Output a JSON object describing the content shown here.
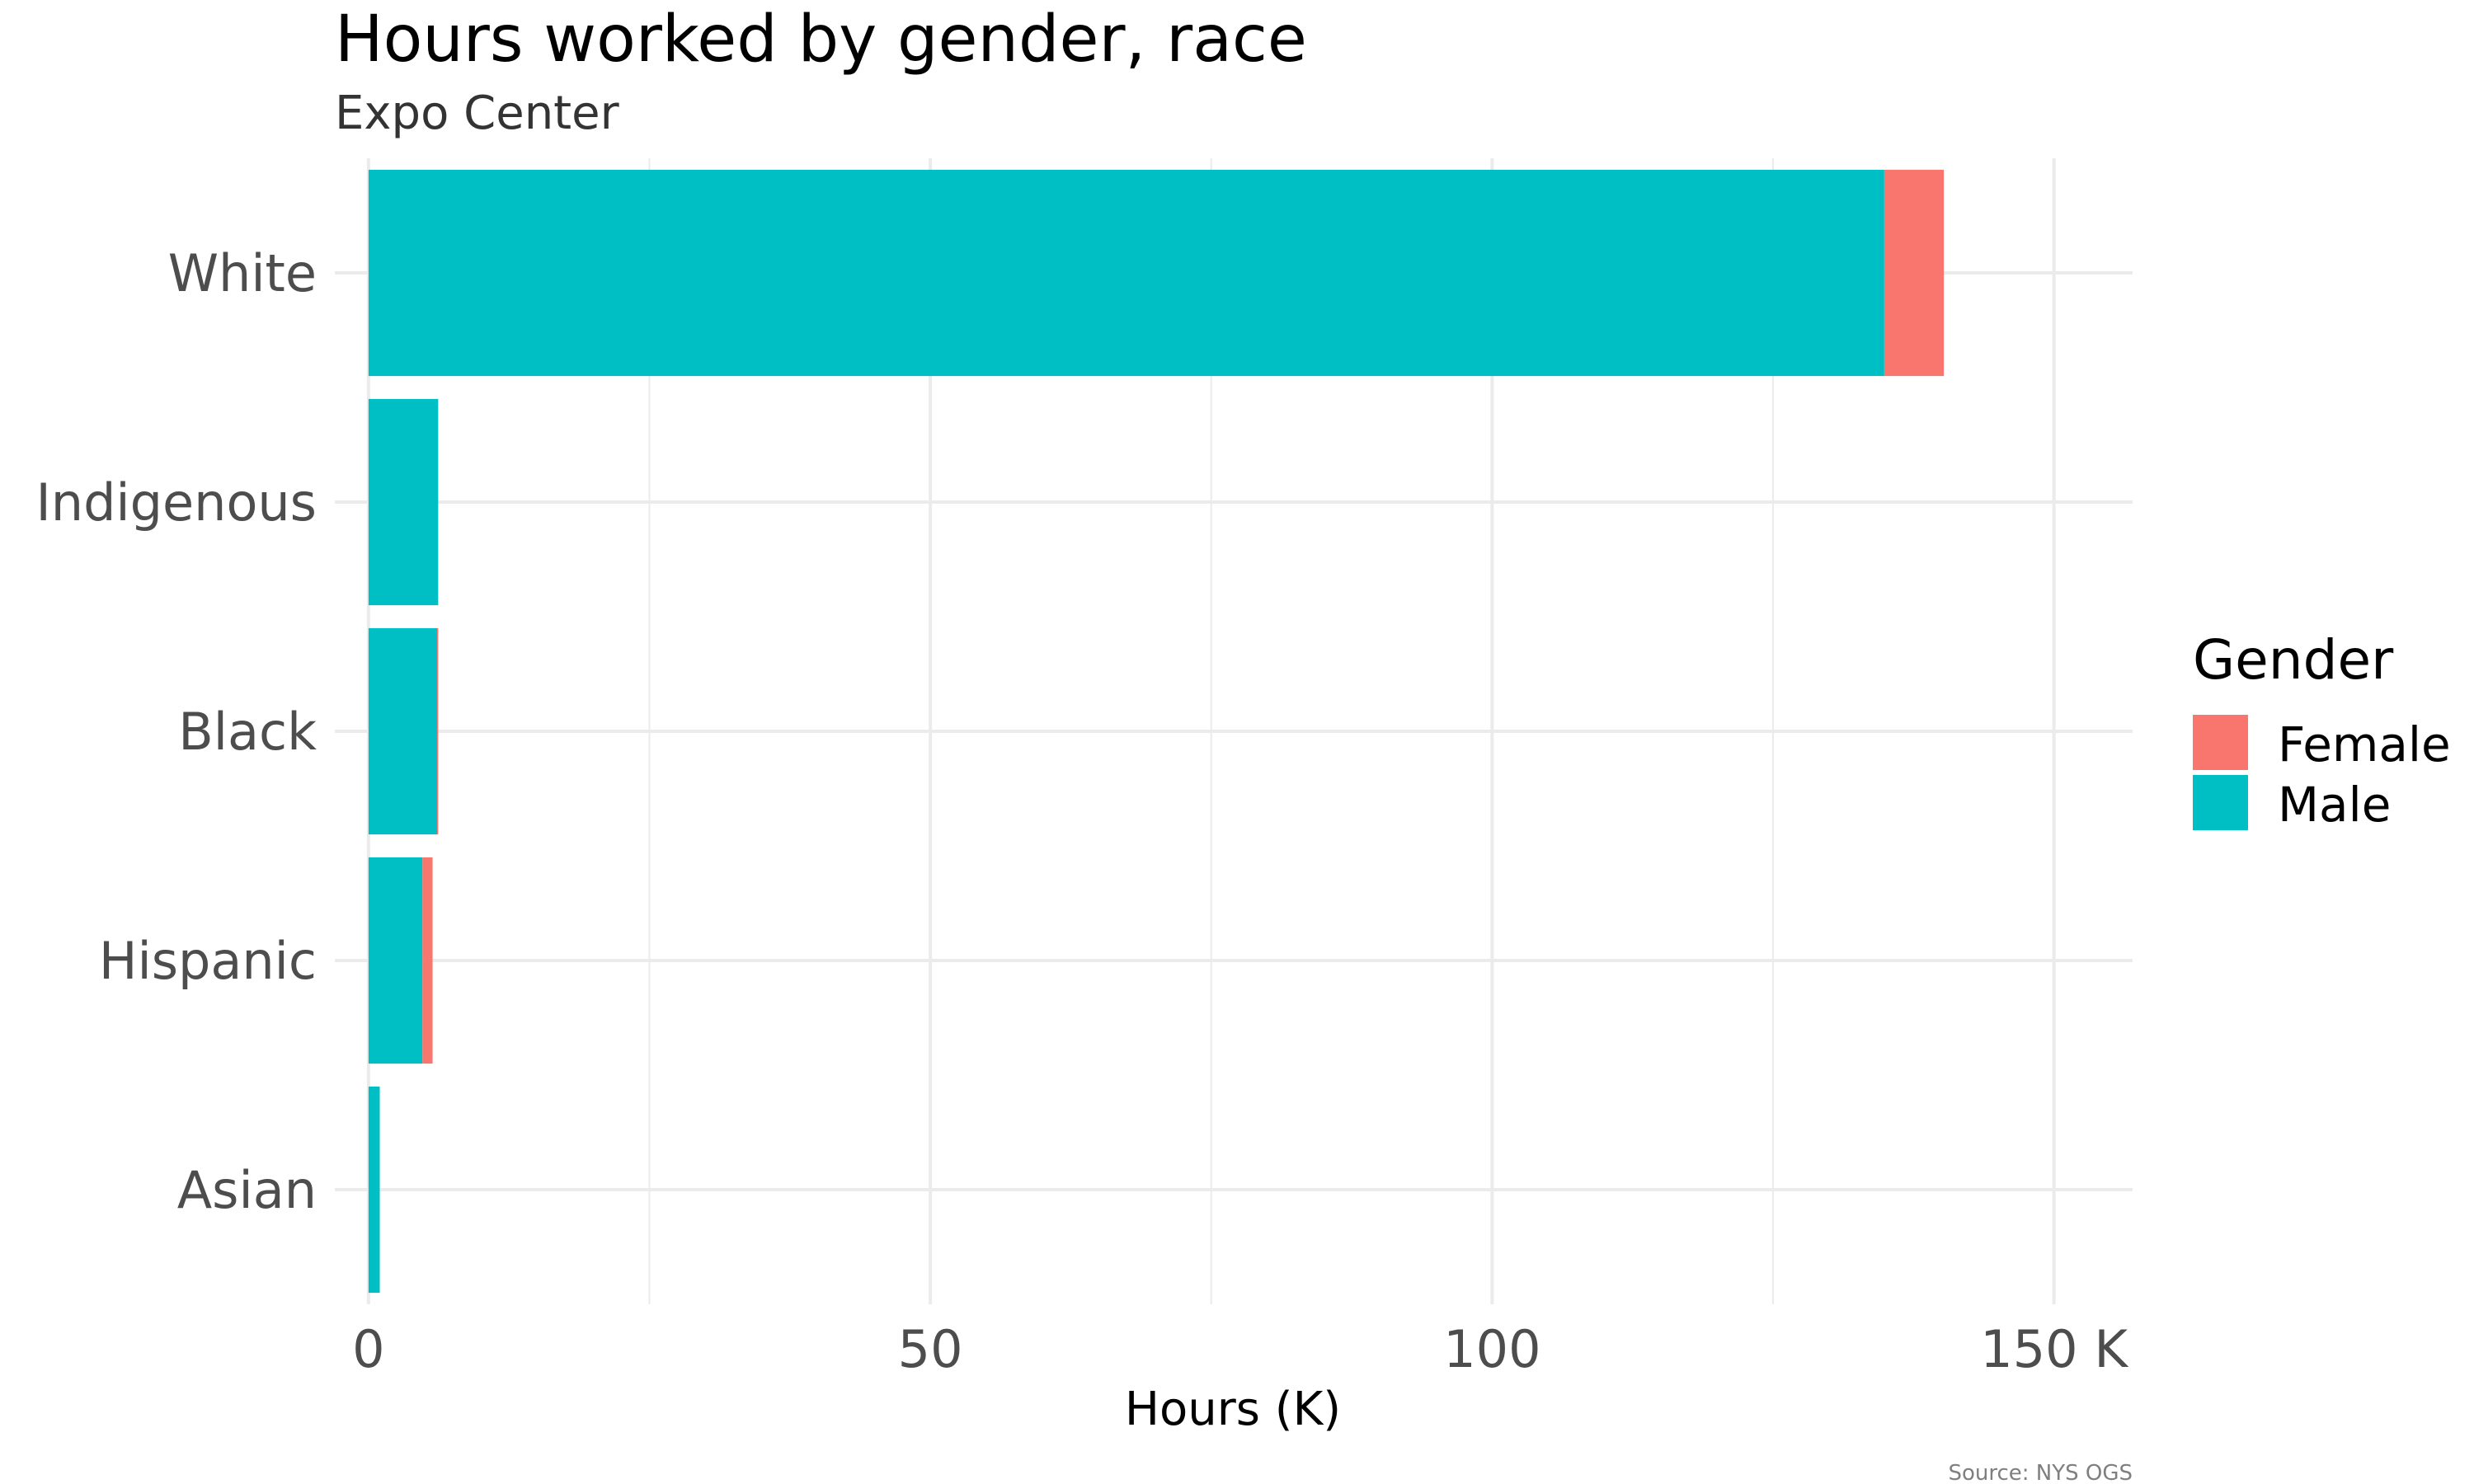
{
  "colors": {
    "female": "#F8766D",
    "male": "#00BFC4",
    "grid": "#EBEBEB",
    "background": "#FFFFFF"
  },
  "chart_data": {
    "type": "bar",
    "orientation": "horizontal",
    "stacked": true,
    "title": "Hours worked by gender, race",
    "subtitle": "Expo Center",
    "xlabel": "Hours (K)",
    "ylabel": "",
    "caption": "Source: NYS OGS",
    "categories": [
      "White",
      "Indigenous",
      "Black",
      "Hispanic",
      "Asian"
    ],
    "series": [
      {
        "name": "Male",
        "color": "#00BFC4",
        "values": [
          134.9,
          6.2,
          6.1,
          4.8,
          1.0
        ]
      },
      {
        "name": "Female",
        "color": "#F8766D",
        "values": [
          5.3,
          0.0,
          0.1,
          0.9,
          0.0
        ]
      }
    ],
    "xlim": [
      -3,
      157
    ],
    "xticks": [
      0,
      50,
      100,
      150
    ],
    "xtick_labels": [
      "0",
      "50",
      "100",
      "150 K"
    ],
    "minor_xticks": [
      25,
      75,
      125
    ],
    "grid": true,
    "legend": {
      "title": "Gender",
      "position": "right",
      "entries": [
        {
          "label": "Female",
          "color": "#F8766D"
        },
        {
          "label": "Male",
          "color": "#00BFC4"
        }
      ]
    }
  }
}
